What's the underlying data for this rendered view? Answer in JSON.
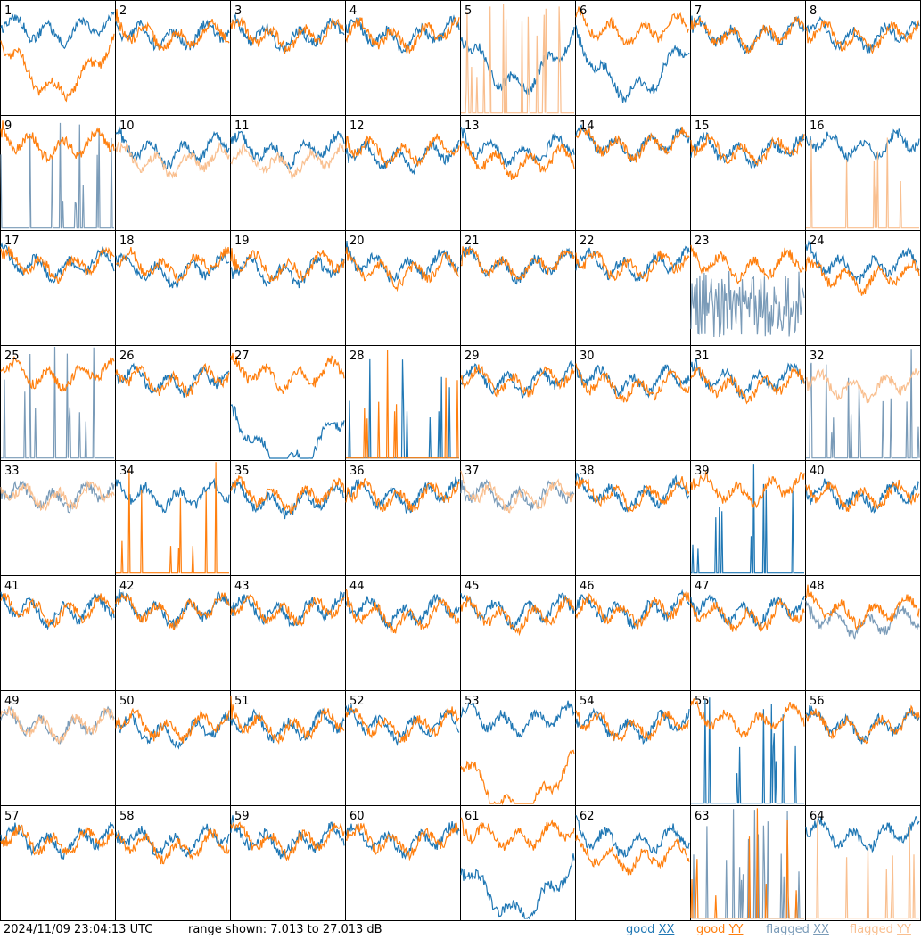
{
  "footer": {
    "timestamp": "2024/11/09 23:04:13 UTC",
    "range_text": "range shown: 7.013 to 27.013 dB"
  },
  "legend": [
    {
      "word": "good",
      "pol": "XX",
      "color": "#1f77b4"
    },
    {
      "word": "good",
      "pol": "YY",
      "color": "#ff7f0e"
    },
    {
      "word": "flagged",
      "pol": "XX",
      "color": "#7a9bb8"
    },
    {
      "word": "flagged",
      "pol": "YY",
      "color": "#f9bf8f"
    }
  ],
  "colors": {
    "good_xx": "#1f77b4",
    "good_yy": "#ff7f0e",
    "flagged_xx": "#7a9bb8",
    "flagged_yy": "#f9bf8f"
  },
  "chart_data": {
    "type": "line",
    "grid": "8x8 small multiples",
    "ylim_db": [
      7.013,
      27.013
    ],
    "series_names": [
      "XX",
      "YY"
    ],
    "panels": [
      {
        "label": "1",
        "xx": "good",
        "yy": "good",
        "xx_level": 22,
        "yy_level": 19,
        "xx_shape": "normal",
        "yy_shape": "dip"
      },
      {
        "label": "2",
        "xx": "good",
        "yy": "good",
        "xx_level": 21,
        "yy_level": 21,
        "xx_shape": "normal",
        "yy_shape": "normal"
      },
      {
        "label": "3",
        "xx": "good",
        "yy": "good",
        "xx_level": 21,
        "yy_level": 21,
        "xx_shape": "normal",
        "yy_shape": "normal"
      },
      {
        "label": "4",
        "xx": "good",
        "yy": "good",
        "xx_level": 21,
        "yy_level": 21,
        "xx_shape": "normal",
        "yy_shape": "normal"
      },
      {
        "label": "5",
        "xx": "good",
        "yy": "flagged",
        "xx_level": 20,
        "yy_level": 7,
        "xx_shape": "dip",
        "yy_shape": "spikes"
      },
      {
        "label": "6",
        "xx": "good",
        "yy": "good",
        "xx_level": 19,
        "yy_level": 22,
        "xx_shape": "dip",
        "yy_shape": "normal"
      },
      {
        "label": "7",
        "xx": "good",
        "yy": "good",
        "xx_level": 21,
        "yy_level": 21,
        "xx_shape": "normal",
        "yy_shape": "normal"
      },
      {
        "label": "8",
        "xx": "good",
        "yy": "good",
        "xx_level": 21,
        "yy_level": 21,
        "xx_shape": "normal",
        "yy_shape": "normal"
      },
      {
        "label": "9",
        "xx": "flagged",
        "yy": "good",
        "xx_level": 7,
        "yy_level": 22,
        "xx_shape": "spikes",
        "yy_shape": "normal"
      },
      {
        "label": "10",
        "xx": "good",
        "yy": "flagged",
        "xx_level": 21,
        "yy_level": 19,
        "xx_shape": "normal",
        "yy_shape": "normal"
      },
      {
        "label": "11",
        "xx": "good",
        "yy": "flagged",
        "xx_level": 21,
        "yy_level": 19,
        "xx_shape": "normal",
        "yy_shape": "normal"
      },
      {
        "label": "12",
        "xx": "good",
        "yy": "good",
        "xx_level": 20,
        "yy_level": 21,
        "xx_shape": "normal",
        "yy_shape": "normal"
      },
      {
        "label": "13",
        "xx": "good",
        "yy": "good",
        "xx_level": 21,
        "yy_level": 19,
        "xx_shape": "normal",
        "yy_shape": "normal"
      },
      {
        "label": "14",
        "xx": "good",
        "yy": "good",
        "xx_level": 22,
        "yy_level": 22,
        "xx_shape": "normal",
        "yy_shape": "normal"
      },
      {
        "label": "15",
        "xx": "good",
        "yy": "good",
        "xx_level": 21,
        "yy_level": 21,
        "xx_shape": "normal",
        "yy_shape": "normal"
      },
      {
        "label": "16",
        "xx": "good",
        "yy": "flagged",
        "xx_level": 22,
        "yy_level": 7,
        "xx_shape": "normal",
        "yy_shape": "spikes"
      },
      {
        "label": "17",
        "xx": "good",
        "yy": "good",
        "xx_level": 21,
        "yy_level": 21,
        "xx_shape": "normal",
        "yy_shape": "normal"
      },
      {
        "label": "18",
        "xx": "good",
        "yy": "good",
        "xx_level": 20,
        "yy_level": 21,
        "xx_shape": "normal",
        "yy_shape": "normal"
      },
      {
        "label": "19",
        "xx": "good",
        "yy": "good",
        "xx_level": 20,
        "yy_level": 21,
        "xx_shape": "normal",
        "yy_shape": "normal"
      },
      {
        "label": "20",
        "xx": "good",
        "yy": "good",
        "xx_level": 21,
        "yy_level": 20,
        "xx_shape": "normal",
        "yy_shape": "normal"
      },
      {
        "label": "21",
        "xx": "good",
        "yy": "good",
        "xx_level": 21,
        "yy_level": 21,
        "xx_shape": "normal",
        "yy_shape": "normal"
      },
      {
        "label": "22",
        "xx": "good",
        "yy": "good",
        "xx_level": 21,
        "yy_level": 21,
        "xx_shape": "normal",
        "yy_shape": "normal"
      },
      {
        "label": "23",
        "xx": "flagged",
        "yy": "good",
        "xx_level": 14,
        "yy_level": 21,
        "xx_shape": "noisy",
        "yy_shape": "normal"
      },
      {
        "label": "24",
        "xx": "good",
        "yy": "good",
        "xx_level": 21,
        "yy_level": 19,
        "xx_shape": "normal",
        "yy_shape": "normal"
      },
      {
        "label": "25",
        "xx": "flagged",
        "yy": "good",
        "xx_level": 7,
        "yy_level": 22,
        "xx_shape": "spikes",
        "yy_shape": "normal"
      },
      {
        "label": "26",
        "xx": "good",
        "yy": "good",
        "xx_level": 21,
        "yy_level": 21,
        "xx_shape": "normal",
        "yy_shape": "normal"
      },
      {
        "label": "27",
        "xx": "good",
        "yy": "good",
        "xx_level": 14,
        "yy_level": 22,
        "xx_shape": "dip",
        "yy_shape": "normal"
      },
      {
        "label": "28",
        "xx": "good",
        "yy": "good",
        "xx_level": 7,
        "yy_level": 7,
        "xx_shape": "spikes",
        "yy_shape": "spikes"
      },
      {
        "label": "29",
        "xx": "good",
        "yy": "good",
        "xx_level": 21,
        "yy_level": 21,
        "xx_shape": "normal",
        "yy_shape": "normal"
      },
      {
        "label": "30",
        "xx": "good",
        "yy": "good",
        "xx_level": 21,
        "yy_level": 20,
        "xx_shape": "normal",
        "yy_shape": "normal"
      },
      {
        "label": "31",
        "xx": "good",
        "yy": "good",
        "xx_level": 21,
        "yy_level": 20,
        "xx_shape": "normal",
        "yy_shape": "normal"
      },
      {
        "label": "32",
        "xx": "flagged",
        "yy": "flagged",
        "xx_level": 7,
        "yy_level": 20,
        "xx_shape": "spikes",
        "yy_shape": "normal"
      },
      {
        "label": "33",
        "xx": "flagged",
        "yy": "flagged",
        "xx_level": 21,
        "yy_level": 21,
        "xx_shape": "normal",
        "yy_shape": "normal"
      },
      {
        "label": "34",
        "xx": "good",
        "yy": "good",
        "xx_level": 21,
        "yy_level": 7,
        "xx_shape": "normal",
        "yy_shape": "spikes"
      },
      {
        "label": "35",
        "xx": "good",
        "yy": "good",
        "xx_level": 20,
        "yy_level": 21,
        "xx_shape": "normal",
        "yy_shape": "normal"
      },
      {
        "label": "36",
        "xx": "good",
        "yy": "good",
        "xx_level": 21,
        "yy_level": 21,
        "xx_shape": "normal",
        "yy_shape": "normal"
      },
      {
        "label": "37",
        "xx": "flagged",
        "yy": "flagged",
        "xx_level": 21,
        "yy_level": 21,
        "xx_shape": "normal",
        "yy_shape": "normal"
      },
      {
        "label": "38",
        "xx": "good",
        "yy": "good",
        "xx_level": 21,
        "yy_level": 21,
        "xx_shape": "normal",
        "yy_shape": "normal"
      },
      {
        "label": "39",
        "xx": "good",
        "yy": "good",
        "xx_level": 7,
        "yy_level": 22,
        "xx_shape": "spikes",
        "yy_shape": "normal"
      },
      {
        "label": "40",
        "xx": "good",
        "yy": "good",
        "xx_level": 21,
        "yy_level": 21,
        "xx_shape": "normal",
        "yy_shape": "normal"
      },
      {
        "label": "41",
        "xx": "good",
        "yy": "good",
        "xx_level": 21,
        "yy_level": 21,
        "xx_shape": "normal",
        "yy_shape": "normal"
      },
      {
        "label": "42",
        "xx": "good",
        "yy": "good",
        "xx_level": 21,
        "yy_level": 21,
        "xx_shape": "normal",
        "yy_shape": "normal"
      },
      {
        "label": "43",
        "xx": "good",
        "yy": "good",
        "xx_level": 21,
        "yy_level": 21,
        "xx_shape": "normal",
        "yy_shape": "normal"
      },
      {
        "label": "44",
        "xx": "good",
        "yy": "good",
        "xx_level": 21,
        "yy_level": 20,
        "xx_shape": "normal",
        "yy_shape": "normal"
      },
      {
        "label": "45",
        "xx": "good",
        "yy": "good",
        "xx_level": 21,
        "yy_level": 20,
        "xx_shape": "normal",
        "yy_shape": "normal"
      },
      {
        "label": "46",
        "xx": "good",
        "yy": "good",
        "xx_level": 21,
        "yy_level": 21,
        "xx_shape": "normal",
        "yy_shape": "normal"
      },
      {
        "label": "47",
        "xx": "good",
        "yy": "good",
        "xx_level": 21,
        "yy_level": 20,
        "xx_shape": "normal",
        "yy_shape": "normal"
      },
      {
        "label": "48",
        "xx": "flagged",
        "yy": "good",
        "xx_level": 19,
        "yy_level": 21,
        "xx_shape": "normal",
        "yy_shape": "normal"
      },
      {
        "label": "49",
        "xx": "flagged",
        "yy": "flagged",
        "xx_level": 21,
        "yy_level": 21,
        "xx_shape": "normal",
        "yy_shape": "normal"
      },
      {
        "label": "50",
        "xx": "good",
        "yy": "good",
        "xx_level": 20,
        "yy_level": 21,
        "xx_shape": "normal",
        "yy_shape": "normal"
      },
      {
        "label": "51",
        "xx": "good",
        "yy": "good",
        "xx_level": 21,
        "yy_level": 21,
        "xx_shape": "normal",
        "yy_shape": "normal"
      },
      {
        "label": "52",
        "xx": "good",
        "yy": "good",
        "xx_level": 21,
        "yy_level": 21,
        "xx_shape": "normal",
        "yy_shape": "normal"
      },
      {
        "label": "53",
        "xx": "good",
        "yy": "good",
        "xx_level": 22,
        "yy_level": 14,
        "xx_shape": "normal",
        "yy_shape": "dip"
      },
      {
        "label": "54",
        "xx": "good",
        "yy": "good",
        "xx_level": 21,
        "yy_level": 21,
        "xx_shape": "normal",
        "yy_shape": "normal"
      },
      {
        "label": "55",
        "xx": "good",
        "yy": "good",
        "xx_level": 8,
        "yy_level": 22,
        "xx_shape": "spikes",
        "yy_shape": "normal"
      },
      {
        "label": "56",
        "xx": "good",
        "yy": "good",
        "xx_level": 21,
        "yy_level": 21,
        "xx_shape": "normal",
        "yy_shape": "normal"
      },
      {
        "label": "57",
        "xx": "good",
        "yy": "good",
        "xx_level": 21,
        "yy_level": 21,
        "xx_shape": "normal",
        "yy_shape": "normal"
      },
      {
        "label": "58",
        "xx": "good",
        "yy": "good",
        "xx_level": 21,
        "yy_level": 20,
        "xx_shape": "normal",
        "yy_shape": "normal"
      },
      {
        "label": "59",
        "xx": "good",
        "yy": "good",
        "xx_level": 21,
        "yy_level": 21,
        "xx_shape": "normal",
        "yy_shape": "normal"
      },
      {
        "label": "60",
        "xx": "good",
        "yy": "good",
        "xx_level": 21,
        "yy_level": 21,
        "xx_shape": "normal",
        "yy_shape": "normal"
      },
      {
        "label": "61",
        "xx": "good",
        "yy": "good",
        "xx_level": 16,
        "yy_level": 22,
        "xx_shape": "dip",
        "yy_shape": "normal"
      },
      {
        "label": "62",
        "xx": "good",
        "yy": "good",
        "xx_level": 21,
        "yy_level": 18,
        "xx_shape": "normal",
        "yy_shape": "normal"
      },
      {
        "label": "63",
        "xx": "flagged",
        "yy": "good",
        "xx_level": 7,
        "yy_level": 7,
        "xx_shape": "spikes",
        "yy_shape": "spikes"
      },
      {
        "label": "64",
        "xx": "good",
        "yy": "flagged",
        "xx_level": 22,
        "yy_level": 7,
        "xx_shape": "normal",
        "yy_shape": "spikes"
      }
    ]
  }
}
